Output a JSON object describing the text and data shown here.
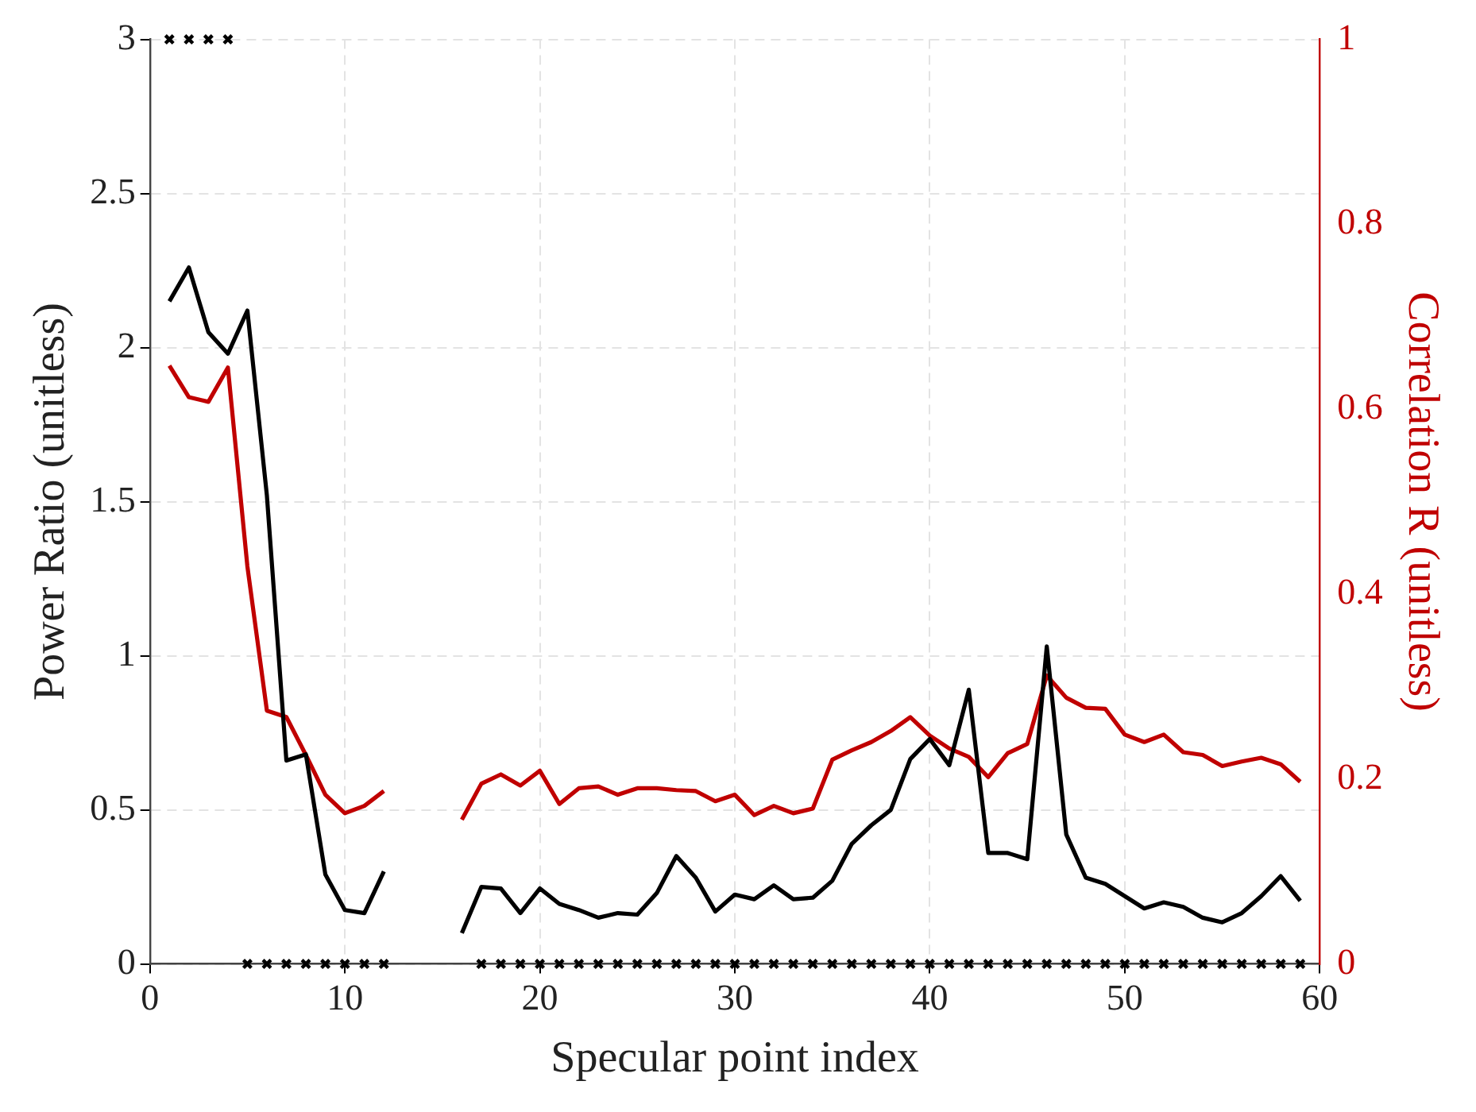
{
  "chart_data": {
    "type": "line",
    "xlabel": "Specular point index",
    "ylabel": "Power Ratio (unitless)",
    "y2label": "Correlation R (unitless)",
    "x": [
      1,
      2,
      3,
      4,
      5,
      6,
      7,
      8,
      9,
      10,
      11,
      12,
      13,
      14,
      15,
      16,
      17,
      18,
      19,
      20,
      21,
      22,
      23,
      24,
      25,
      26,
      27,
      28,
      29,
      30,
      31,
      32,
      33,
      34,
      35,
      36,
      37,
      38,
      39,
      40,
      41,
      42,
      43,
      44,
      45,
      46,
      47,
      48,
      49,
      50,
      51,
      52,
      53,
      54,
      55,
      56,
      57,
      58,
      59
    ],
    "series": [
      {
        "color": "#000000",
        "values": [
          2.15,
          2.26,
          2.05,
          1.98,
          2.12,
          1.52,
          0.66,
          0.68,
          0.29,
          0.175,
          0.165,
          0.3,
          null,
          null,
          null,
          0.1,
          0.25,
          0.245,
          0.165,
          0.245,
          0.195,
          0.175,
          0.15,
          0.165,
          0.16,
          0.23,
          0.35,
          0.28,
          0.17,
          0.225,
          0.21,
          0.255,
          0.21,
          0.215,
          0.27,
          0.39,
          0.45,
          0.5,
          0.665,
          0.73,
          0.645,
          0.89,
          0.36,
          0.36,
          0.34,
          1.03,
          0.42,
          0.28,
          0.26,
          0.22,
          0.18,
          0.2,
          0.185,
          0.15,
          0.135,
          0.165,
          0.22,
          0.285,
          0.205
        ]
      },
      {
        "color": "#c00000",
        "axis": "y2",
        "values": [
          0.647,
          0.613,
          0.608,
          0.645,
          0.43,
          0.274,
          0.267,
          0.226,
          0.183,
          0.163,
          0.171,
          0.187,
          null,
          null,
          null,
          0.156,
          0.195,
          0.205,
          0.193,
          0.209,
          0.173,
          0.19,
          0.192,
          0.183,
          0.19,
          0.19,
          0.188,
          0.187,
          0.176,
          0.183,
          0.161,
          0.171,
          0.163,
          0.168,
          0.221,
          0.231,
          0.24,
          0.252,
          0.267,
          0.247,
          0.233,
          0.224,
          0.202,
          0.228,
          0.238,
          0.312,
          0.288,
          0.277,
          0.276,
          0.248,
          0.24,
          0.248,
          0.229,
          0.226,
          0.214,
          0.219,
          0.223,
          0.216,
          0.197
        ]
      },
      {
        "type": "scatter",
        "color": "#000000",
        "marker": "cross",
        "x": [
          1,
          2,
          3,
          4,
          5,
          6,
          7,
          8,
          9,
          10,
          11,
          12,
          17,
          18,
          19,
          20,
          21,
          22,
          23,
          24,
          25,
          26,
          27,
          28,
          29,
          30,
          31,
          32,
          33,
          34,
          35,
          36,
          37,
          38,
          39,
          40,
          41,
          42,
          43,
          44,
          45,
          46,
          47,
          48,
          49,
          50,
          51,
          52,
          53,
          54,
          55,
          56,
          57,
          58,
          59
        ],
        "values": [
          3,
          3,
          3,
          3,
          0,
          0,
          0,
          0,
          0,
          0,
          0,
          0,
          0,
          0,
          0,
          0,
          0,
          0,
          0,
          0,
          0,
          0,
          0,
          0,
          0,
          0,
          0,
          0,
          0,
          0,
          0,
          0,
          0,
          0,
          0,
          0,
          0,
          0,
          0,
          0,
          0,
          0,
          0,
          0,
          0,
          0,
          0,
          0,
          0,
          0,
          0,
          0,
          0,
          0,
          0
        ]
      }
    ],
    "xlim": [
      0,
      60
    ],
    "xticks": [
      0,
      10,
      20,
      30,
      40,
      50,
      60
    ],
    "ylim": [
      0,
      3
    ],
    "yticks": [
      0,
      0.5,
      1,
      1.5,
      2,
      2.5,
      3
    ],
    "y2lim": [
      0,
      1
    ],
    "y2ticks": [
      0,
      0.2,
      0.4,
      0.6,
      0.8,
      1
    ],
    "grid": true,
    "legend": false,
    "marker": "none",
    "line_style": "solid"
  }
}
